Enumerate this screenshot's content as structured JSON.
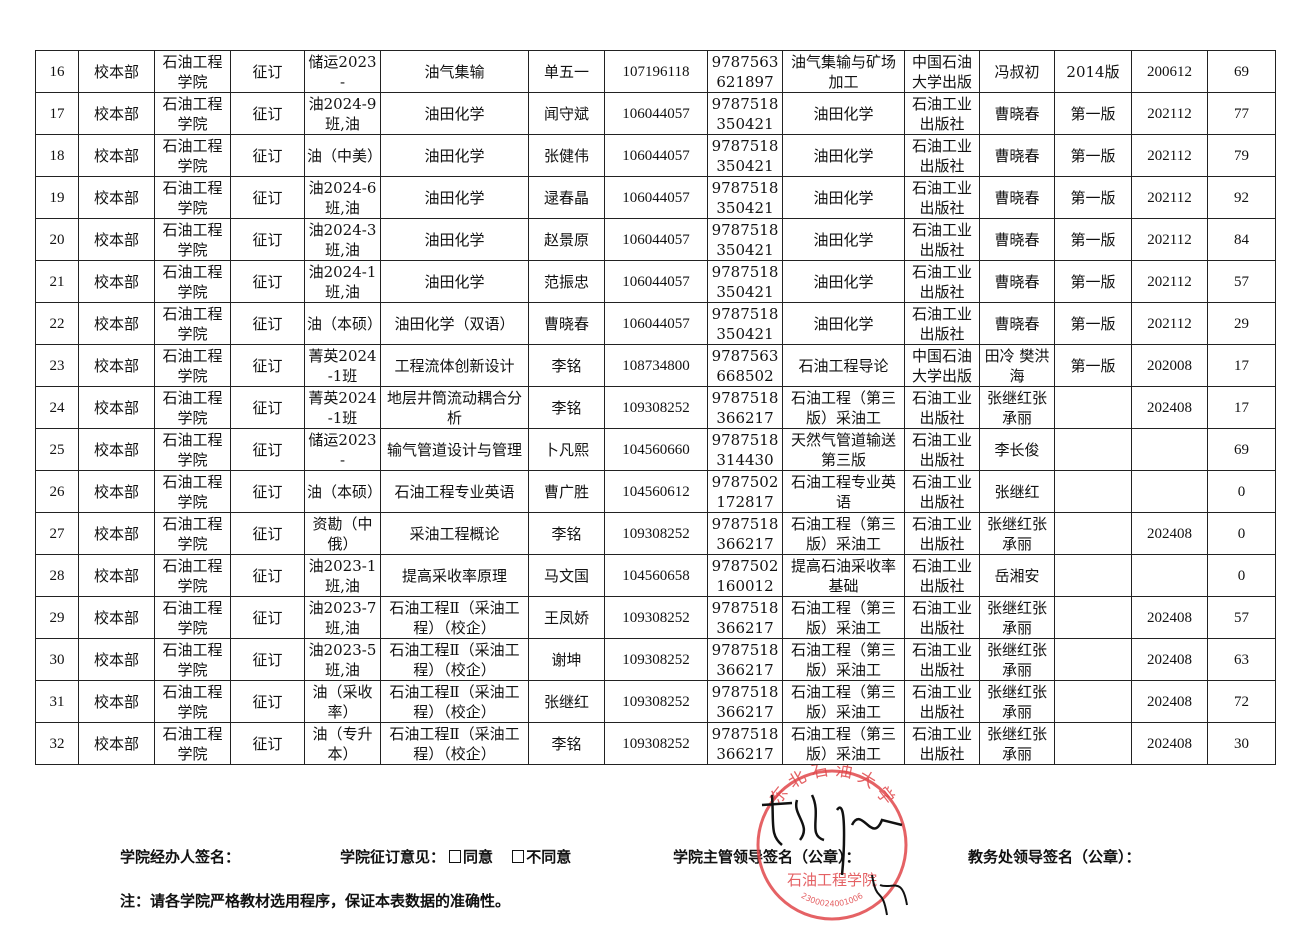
{
  "table": {
    "rows": [
      [
        "16",
        "校本部",
        "石油工程学院",
        "征订",
        "储运2023-",
        "油气集输",
        "单五一",
        "107196118",
        "9787563621897",
        "油气集输与矿场加工",
        "中国石油大学出版",
        "冯叔初",
        "2014版",
        "200612",
        "69"
      ],
      [
        "17",
        "校本部",
        "石油工程学院",
        "征订",
        "油2024-9班,油",
        "油田化学",
        "闻守斌",
        "106044057",
        "9787518350421",
        "油田化学",
        "石油工业出版社",
        "曹晓春",
        "第一版",
        "202112",
        "77"
      ],
      [
        "18",
        "校本部",
        "石油工程学院",
        "征订",
        "油（中美）",
        "油田化学",
        "张健伟",
        "106044057",
        "9787518350421",
        "油田化学",
        "石油工业出版社",
        "曹晓春",
        "第一版",
        "202112",
        "79"
      ],
      [
        "19",
        "校本部",
        "石油工程学院",
        "征订",
        "油2024-6班,油",
        "油田化学",
        "逯春晶",
        "106044057",
        "9787518350421",
        "油田化学",
        "石油工业出版社",
        "曹晓春",
        "第一版",
        "202112",
        "92"
      ],
      [
        "20",
        "校本部",
        "石油工程学院",
        "征订",
        "油2024-3班,油",
        "油田化学",
        "赵景原",
        "106044057",
        "9787518350421",
        "油田化学",
        "石油工业出版社",
        "曹晓春",
        "第一版",
        "202112",
        "84"
      ],
      [
        "21",
        "校本部",
        "石油工程学院",
        "征订",
        "油2024-1班,油",
        "油田化学",
        "范振忠",
        "106044057",
        "9787518350421",
        "油田化学",
        "石油工业出版社",
        "曹晓春",
        "第一版",
        "202112",
        "57"
      ],
      [
        "22",
        "校本部",
        "石油工程学院",
        "征订",
        "油（本硕）",
        "油田化学（双语）",
        "曹晓春",
        "106044057",
        "9787518350421",
        "油田化学",
        "石油工业出版社",
        "曹晓春",
        "第一版",
        "202112",
        "29"
      ],
      [
        "23",
        "校本部",
        "石油工程学院",
        "征订",
        "菁英2024-1班",
        "工程流体创新设计",
        "李铭",
        "108734800",
        "9787563668502",
        "石油工程导论",
        "中国石油大学出版",
        "田冷 樊洪海",
        "第一版",
        "202008",
        "17"
      ],
      [
        "24",
        "校本部",
        "石油工程学院",
        "征订",
        "菁英2024-1班",
        "地层井筒流动耦合分析",
        "李铭",
        "109308252",
        "9787518366217",
        "石油工程（第三版）采油工",
        "石油工业出版社",
        "张继红张承丽",
        "",
        "202408",
        "17"
      ],
      [
        "25",
        "校本部",
        "石油工程学院",
        "征订",
        "储运2023-",
        "输气管道设计与管理",
        "卜凡熙",
        "104560660",
        "9787518314430",
        "天然气管道输送 第三版",
        "石油工业出版社",
        "李长俊",
        "",
        "",
        "69"
      ],
      [
        "26",
        "校本部",
        "石油工程学院",
        "征订",
        "油（本硕）",
        "石油工程专业英语",
        "曹广胜",
        "104560612",
        "9787502172817",
        "石油工程专业英语",
        "石油工业出版社",
        "张继红",
        "",
        "",
        "0"
      ],
      [
        "27",
        "校本部",
        "石油工程学院",
        "征订",
        "资勘（中俄）",
        "采油工程概论",
        "李铭",
        "109308252",
        "9787518366217",
        "石油工程（第三版）采油工",
        "石油工业出版社",
        "张继红张承丽",
        "",
        "202408",
        "0"
      ],
      [
        "28",
        "校本部",
        "石油工程学院",
        "征订",
        "油2023-1班,油",
        "提高采收率原理",
        "马文国",
        "104560658",
        "9787502160012",
        "提高石油采收率基础",
        "石油工业出版社",
        "岳湘安",
        "",
        "",
        "0"
      ],
      [
        "29",
        "校本部",
        "石油工程学院",
        "征订",
        "油2023-7班,油",
        "石油工程Ⅱ（采油工程）（校企）",
        "王凤娇",
        "109308252",
        "9787518366217",
        "石油工程（第三版）采油工",
        "石油工业出版社",
        "张继红张承丽",
        "",
        "202408",
        "57"
      ],
      [
        "30",
        "校本部",
        "石油工程学院",
        "征订",
        "油2023-5班,油",
        "石油工程Ⅱ（采油工程）（校企）",
        "谢坤",
        "109308252",
        "9787518366217",
        "石油工程（第三版）采油工",
        "石油工业出版社",
        "张继红张承丽",
        "",
        "202408",
        "63"
      ],
      [
        "31",
        "校本部",
        "石油工程学院",
        "征订",
        "油（采收率）",
        "石油工程Ⅱ（采油工程）（校企）",
        "张继红",
        "109308252",
        "9787518366217",
        "石油工程（第三版）采油工",
        "石油工业出版社",
        "张继红张承丽",
        "",
        "202408",
        "72"
      ],
      [
        "32",
        "校本部",
        "石油工程学院",
        "征订",
        "油（专升本）",
        "石油工程Ⅱ（采油工程）（校企）",
        "李铭",
        "109308252",
        "9787518366217",
        "石油工程（第三版）采油工",
        "石油工业出版社",
        "张继红张承丽",
        "",
        "202408",
        "30"
      ]
    ]
  },
  "footer": {
    "handler_sign": "学院经办人签名：",
    "opinion_label": "学院征订意见：",
    "agree": "同意",
    "disagree": "不同意",
    "dean_sign": "学院主管领导签名（公章）：",
    "office_sign": "教务处领导签名（公章）：",
    "note": "注：请各学院严格教材选用程序，保证本表数据的准确性。"
  },
  "seal": {
    "org": "东北石油大学",
    "unit": "石油工程学院",
    "code": "2300024001006",
    "color": "#e0464a"
  }
}
